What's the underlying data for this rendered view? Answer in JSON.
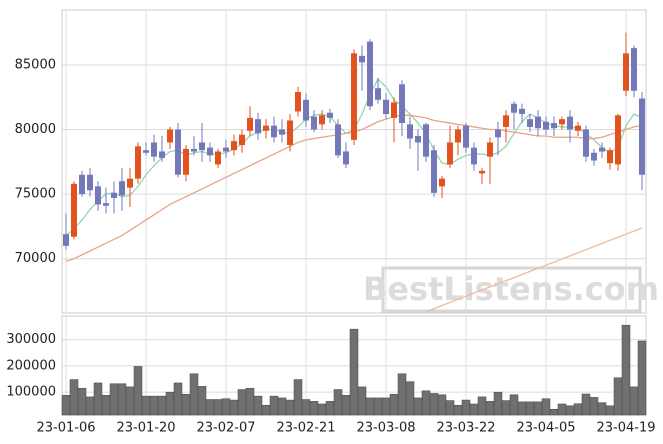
{
  "chart_data": [
    {
      "type": "candlestick",
      "categories": [
        "23-01-06",
        null,
        null,
        null,
        null,
        null,
        null,
        null,
        null,
        null,
        "23-01-20",
        null,
        null,
        null,
        null,
        null,
        null,
        null,
        null,
        null,
        "23-02-07",
        null,
        null,
        null,
        null,
        null,
        null,
        null,
        null,
        null,
        "23-02-21",
        null,
        null,
        null,
        null,
        null,
        null,
        null,
        null,
        null,
        "23-03-08",
        null,
        null,
        null,
        null,
        null,
        null,
        null,
        null,
        null,
        "23-03-22",
        null,
        null,
        null,
        null,
        null,
        null,
        null,
        null,
        null,
        "23-04-05",
        null,
        null,
        null,
        null,
        null,
        null,
        null,
        null,
        null,
        "23-04-19",
        null,
        null
      ],
      "open": [
        71900,
        71700,
        76500,
        76500,
        75600,
        74300,
        75100,
        76000,
        75500,
        76200,
        78400,
        79000,
        78300,
        79000,
        80000,
        76500,
        78500,
        79000,
        78600,
        77300,
        78600,
        78400,
        78800,
        79900,
        80800,
        79900,
        80300,
        80000,
        78800,
        81400,
        82300,
        81000,
        80400,
        81300,
        80400,
        78300,
        79200,
        85700,
        86800,
        83200,
        82300,
        80900,
        83500,
        80400,
        79500,
        80400,
        78400,
        75600,
        77300,
        79000,
        80300,
        78600,
        76600,
        77900,
        80000,
        80200,
        82000,
        81600,
        80800,
        81000,
        80600,
        80500,
        80400,
        81000,
        79900,
        80000,
        78200,
        78600,
        77400,
        77300,
        83000,
        86300,
        82400
      ],
      "high": [
        73500,
        76000,
        76800,
        77000,
        76000,
        75500,
        76000,
        77000,
        77000,
        79000,
        79000,
        79600,
        79500,
        80200,
        80500,
        78800,
        79500,
        80500,
        79000,
        78500,
        79200,
        79600,
        80000,
        81800,
        81300,
        80800,
        81000,
        80800,
        81200,
        83300,
        82800,
        81500,
        81500,
        81600,
        80800,
        79000,
        86200,
        86500,
        87000,
        84000,
        82800,
        82500,
        83800,
        81000,
        80000,
        80500,
        78800,
        76400,
        80300,
        80300,
        80500,
        79000,
        77000,
        79400,
        80600,
        81500,
        82200,
        82000,
        81200,
        81500,
        81000,
        81000,
        81000,
        81500,
        80600,
        80300,
        78500,
        79000,
        78600,
        81200,
        87500,
        86500,
        82900
      ],
      "low": [
        70700,
        71500,
        74800,
        74800,
        73700,
        73500,
        73500,
        73700,
        74000,
        75800,
        78000,
        77500,
        77500,
        78500,
        76300,
        76000,
        78000,
        77500,
        77500,
        77000,
        77800,
        78000,
        78200,
        79500,
        79200,
        79300,
        79000,
        79000,
        78300,
        81000,
        80200,
        79800,
        80000,
        80500,
        77800,
        77000,
        78800,
        83000,
        81500,
        82000,
        80800,
        79000,
        79500,
        78500,
        76800,
        77500,
        74800,
        74700,
        77000,
        78000,
        78200,
        76800,
        75800,
        75800,
        78000,
        79000,
        80000,
        80500,
        79800,
        79500,
        79600,
        79500,
        80000,
        79000,
        79500,
        77500,
        77200,
        77800,
        76900,
        76800,
        82600,
        82500,
        75300
      ],
      "close": [
        71000,
        75800,
        75000,
        75300,
        74200,
        74100,
        74700,
        74900,
        76200,
        78700,
        78200,
        77900,
        77800,
        80000,
        76500,
        78500,
        78300,
        78400,
        78000,
        78300,
        78300,
        79100,
        79600,
        80900,
        79700,
        80300,
        79400,
        79600,
        80700,
        82900,
        80700,
        80000,
        81100,
        80900,
        78000,
        77300,
        85900,
        85200,
        81800,
        82300,
        81200,
        82100,
        80500,
        79300,
        79000,
        77900,
        75100,
        76200,
        79000,
        80000,
        78600,
        77300,
        76800,
        79000,
        79400,
        81100,
        81300,
        81200,
        80200,
        80100,
        80000,
        80100,
        80800,
        80000,
        80300,
        77900,
        77600,
        78300,
        78400,
        81100,
        85900,
        83000,
        76500
      ],
      "up_color": "#e2531f",
      "down_color": "#7378b9",
      "series": [
        {
          "color": "#93d5b3",
          "values": [
            71800,
            72300,
            73000,
            73800,
            74500,
            75000,
            75100,
            74800,
            74900,
            75600,
            76500,
            77200,
            77800,
            78300,
            78400,
            78000,
            78200,
            78300,
            78100,
            78100,
            78200,
            78500,
            78900,
            79500,
            79800,
            80000,
            80000,
            79800,
            79700,
            80200,
            80800,
            81100,
            81200,
            81000,
            80300,
            79700,
            80000,
            81200,
            82700,
            83900,
            83300,
            82300,
            81800,
            81200,
            80500,
            79700,
            78400,
            77400,
            77300,
            77700,
            78000,
            78100,
            78100,
            78000,
            78200,
            78700,
            79700,
            80600,
            81200,
            80900,
            80500,
            80300,
            80200,
            80200,
            80100,
            79700,
            79200,
            78600,
            78200,
            78600,
            80300,
            81200,
            80900
          ]
        },
        {
          "color": "#e9a482",
          "values": [
            69800,
            70000,
            70300,
            70600,
            70900,
            71200,
            71500,
            71800,
            72200,
            72600,
            73000,
            73400,
            73800,
            74200,
            74500,
            74800,
            75100,
            75400,
            75700,
            76000,
            76300,
            76600,
            76900,
            77200,
            77500,
            77800,
            78100,
            78400,
            78700,
            79000,
            79200,
            79300,
            79400,
            79500,
            79600,
            79700,
            79800,
            80000,
            80300,
            80600,
            80800,
            81000,
            81100,
            81100,
            81000,
            80900,
            80700,
            80600,
            80500,
            80400,
            80300,
            80200,
            80100,
            80000,
            80000,
            79900,
            79800,
            79700,
            79600,
            79500,
            79500,
            79400,
            79400,
            79400,
            79400,
            79300,
            79300,
            79400,
            79600,
            79800,
            80000,
            80200,
            80300
          ]
        },
        {
          "color": "#f2bb9c",
          "values": [
            null,
            null,
            null,
            null,
            null,
            null,
            null,
            null,
            null,
            null,
            null,
            null,
            null,
            null,
            null,
            null,
            null,
            null,
            null,
            null,
            null,
            null,
            null,
            null,
            null,
            null,
            null,
            null,
            null,
            null,
            null,
            null,
            null,
            null,
            null,
            null,
            null,
            null,
            null,
            null,
            null,
            null,
            null,
            null,
            null,
            65900,
            66140,
            66380,
            66620,
            66860,
            67100,
            67340,
            67580,
            67820,
            68060,
            68300,
            68540,
            68780,
            69020,
            69260,
            69500,
            69740,
            69980,
            70220,
            70460,
            70700,
            70940,
            71180,
            71420,
            71660,
            71900,
            72140,
            72380
          ]
        }
      ],
      "ylim": [
        65800,
        89250
      ],
      "yticks": [
        70000,
        75000,
        80000,
        85000
      ],
      "grid": true,
      "watermark": "BestListens.com"
    },
    {
      "type": "bar",
      "color": "#707070",
      "values": [
        88000,
        148000,
        115000,
        82000,
        135000,
        88000,
        132000,
        132000,
        120000,
        198000,
        85000,
        85000,
        85000,
        100000,
        135000,
        92000,
        170000,
        122000,
        72000,
        72000,
        75000,
        70000,
        110000,
        115000,
        85000,
        50000,
        85000,
        78000,
        70000,
        148000,
        72000,
        65000,
        55000,
        65000,
        110000,
        88000,
        340000,
        120000,
        78000,
        78000,
        78000,
        92000,
        170000,
        140000,
        78000,
        105000,
        95000,
        90000,
        68000,
        50000,
        70000,
        55000,
        82000,
        65000,
        100000,
        68000,
        90000,
        63000,
        63000,
        63000,
        75000,
        35000,
        55000,
        48000,
        56000,
        93000,
        80000,
        60000,
        48000,
        155000,
        355000,
        120000,
        295000
      ],
      "ylim": [
        13000,
        390000
      ],
      "yticks": [
        100000,
        200000,
        300000
      ],
      "grid": true
    }
  ]
}
